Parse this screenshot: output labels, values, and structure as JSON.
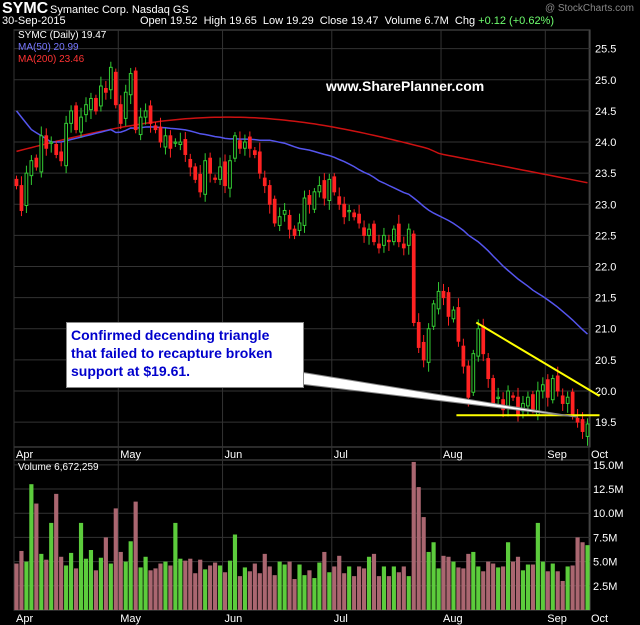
{
  "header": {
    "symbol": "SYMC",
    "company": "Symantec Corp.  Nasdaq GS",
    "date": "30-Sep-2015",
    "ohlc_text": "Open 19.52  High 19.65  Low 19.29  Close 19.47  Volume 6.7M  Chg",
    "change": "+0.12 (+0.62%)",
    "copyright": "@ StockCharts.com"
  },
  "legend": {
    "price": "SYMC (Daily) 19.47",
    "ma50": "MA(50) 20.99",
    "ma200": "MA(200) 23.46",
    "volume": "Volume 6,672,259"
  },
  "watermark": "www.SharePlanner.com",
  "annotation": {
    "line1": "Confirmed decending triangle",
    "line2": "that failed to recapture broken",
    "line3": "support at $19.61."
  },
  "colors": {
    "up": "#33cc33",
    "down": "#ff2222",
    "ma50": "#5555ee",
    "ma200": "#cc1111",
    "trendline": "#ffff00",
    "vol_up": "#5ccc3c",
    "vol_down": "#aa6670",
    "grid": "#333333"
  },
  "chart_data": {
    "type": "candlestick",
    "x_ticks": [
      "Apr",
      "May",
      "Jun",
      "Jul",
      "Aug",
      "Sep",
      "Oct"
    ],
    "price_axis": {
      "ylim": [
        19.1,
        25.8
      ],
      "ticks": [
        19.5,
        20.0,
        20.5,
        21.0,
        21.5,
        22.0,
        22.5,
        23.0,
        23.5,
        24.0,
        24.5,
        25.0,
        25.5
      ]
    },
    "volume_axis": {
      "ylim": [
        0,
        15.5
      ],
      "unit": "M",
      "ticks": [
        "2.5M",
        "5.0M",
        "7.5M",
        "10.0M",
        "12.5M",
        "15.0M"
      ]
    },
    "support_level": 19.61,
    "closes": [
      23.3,
      22.9,
      23.5,
      23.7,
      23.6,
      24.1,
      23.9,
      24.0,
      23.8,
      23.7,
      24.3,
      24.5,
      24.2,
      24.4,
      24.6,
      24.7,
      24.5,
      24.9,
      24.8,
      25.2,
      24.6,
      24.3,
      24.8,
      25.1,
      24.2,
      24.4,
      24.5,
      24.3,
      24.2,
      24.0,
      24.1,
      23.9,
      24.0,
      24.0,
      23.8,
      23.6,
      23.4,
      23.2,
      23.7,
      23.5,
      23.4,
      23.6,
      23.3,
      23.7,
      24.1,
      23.9,
      24.0,
      23.9,
      23.8,
      23.5,
      23.3,
      23.0,
      22.7,
      22.8,
      22.9,
      22.6,
      22.5,
      22.7,
      23.1,
      23.0,
      23.2,
      23.3,
      23.1,
      23.4,
      23.2,
      23.0,
      22.8,
      22.9,
      22.8,
      22.7,
      22.5,
      22.6,
      22.4,
      22.3,
      22.5,
      22.4,
      22.6,
      22.4,
      22.3,
      22.6,
      21.1,
      20.7,
      20.5,
      21.0,
      21.4,
      21.6,
      21.5,
      21.2,
      21.3,
      20.8,
      20.4,
      19.9,
      20.6,
      21.0,
      20.6,
      20.2,
      19.8,
      19.9,
      19.7,
      20.0,
      19.9,
      19.6,
      19.8,
      19.9,
      19.7,
      20.0,
      20.1,
      19.9,
      20.2,
      20.0,
      19.8,
      19.9,
      19.6,
      19.5,
      19.35,
      19.47
    ],
    "volumes_M": [
      4.8,
      6.1,
      5.0,
      13.0,
      11.0,
      5.8,
      5.2,
      9.0,
      12.0,
      5.5,
      4.6,
      5.9,
      4.3,
      9.0,
      5.3,
      6.2,
      4.1,
      5.4,
      7.5,
      4.8,
      10.5,
      6.0,
      5.0,
      7.1,
      11.2,
      4.4,
      5.5,
      4.1,
      4.3,
      4.8,
      5.0,
      4.6,
      9.0,
      5.3,
      5.1,
      5.3,
      3.8,
      5.2,
      4.2,
      4.6,
      4.9,
      4.6,
      3.9,
      5.1,
      7.8,
      3.5,
      4.4,
      4.0,
      4.8,
      3.8,
      5.8,
      4.5,
      3.6,
      5.0,
      4.7,
      5.0,
      3.2,
      4.7,
      3.6,
      4.1,
      3.3,
      4.9,
      6.0,
      3.9,
      4.5,
      5.6,
      3.8,
      4.5,
      3.5,
      4.5,
      4.3,
      5.5,
      5.8,
      3.5,
      4.5,
      3.5,
      4.5,
      3.9,
      4.5,
      3.5,
      15.3,
      12.7,
      9.6,
      6.0,
      7.0,
      4.3,
      5.6,
      5.5,
      5.0,
      4.4,
      4.3,
      5.8,
      6.0,
      4.5,
      4.0,
      5.0,
      4.8,
      4.4,
      4.5,
      7.0,
      5.0,
      5.5,
      4.1,
      4.7,
      4.7,
      9.0,
      5.0,
      4.0,
      4.8,
      4.0,
      3.0,
      4.5,
      4.6,
      7.5,
      7.0,
      6.7
    ]
  }
}
